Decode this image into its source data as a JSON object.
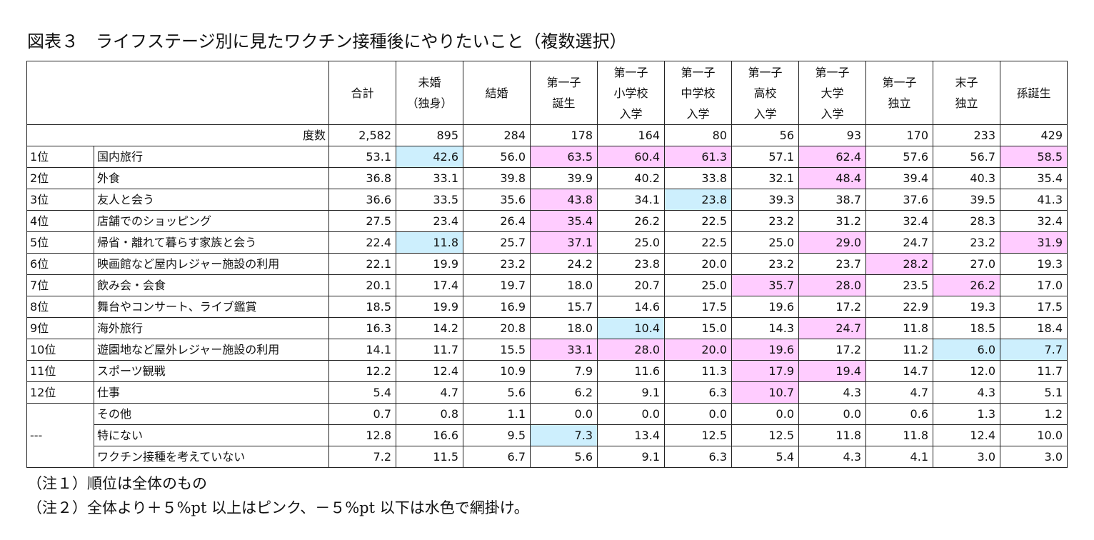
{
  "title": "図表３　ライフステージ別に見たワクチン接種後にやりたいこと（複数選択）",
  "columns": [
    [
      "合計"
    ],
    [
      "未婚",
      "（独身）"
    ],
    [
      "結婚"
    ],
    [
      "第一子",
      "誕生"
    ],
    [
      "第一子",
      "小学校",
      "入学"
    ],
    [
      "第一子",
      "中学校",
      "入学"
    ],
    [
      "第一子",
      "高校",
      "入学"
    ],
    [
      "第一子",
      "大学",
      "入学"
    ],
    [
      "第一子",
      "独立"
    ],
    [
      "末子",
      "独立"
    ],
    [
      "孫誕生"
    ]
  ],
  "dosu": {
    "label": "度数",
    "values": [
      "2,582",
      "895",
      "284",
      "178",
      "164",
      "80",
      "56",
      "93",
      "170",
      "233",
      "429"
    ]
  },
  "rows": [
    {
      "rank": "1位",
      "item": "国内旅行",
      "values": [
        "53.1",
        "42.6",
        "56.0",
        "63.5",
        "60.4",
        "61.3",
        "57.1",
        "62.4",
        "57.6",
        "56.7",
        "58.5"
      ],
      "hl": [
        "",
        "b",
        "",
        "p",
        "p",
        "p",
        "",
        "p",
        "",
        "",
        "p"
      ]
    },
    {
      "rank": "2位",
      "item": "外食",
      "values": [
        "36.8",
        "33.1",
        "39.8",
        "39.9",
        "40.2",
        "33.8",
        "32.1",
        "48.4",
        "39.4",
        "40.3",
        "35.4"
      ],
      "hl": [
        "",
        "",
        "",
        "",
        "",
        "",
        "",
        "p",
        "",
        "",
        ""
      ]
    },
    {
      "rank": "3位",
      "item": "友人と会う",
      "values": [
        "36.6",
        "33.5",
        "35.6",
        "43.8",
        "34.1",
        "23.8",
        "39.3",
        "38.7",
        "37.6",
        "39.5",
        "41.3"
      ],
      "hl": [
        "",
        "",
        "",
        "p",
        "",
        "b",
        "",
        "",
        "",
        "",
        ""
      ]
    },
    {
      "rank": "4位",
      "item": "店舗でのショッピング",
      "values": [
        "27.5",
        "23.4",
        "26.4",
        "35.4",
        "26.2",
        "22.5",
        "23.2",
        "31.2",
        "32.4",
        "28.3",
        "32.4"
      ],
      "hl": [
        "",
        "",
        "",
        "p",
        "",
        "",
        "",
        "",
        "",
        "",
        ""
      ]
    },
    {
      "rank": "5位",
      "item": "帰省・離れて暮らす家族と会う",
      "values": [
        "22.4",
        "11.8",
        "25.7",
        "37.1",
        "25.0",
        "22.5",
        "25.0",
        "29.0",
        "24.7",
        "23.2",
        "31.9"
      ],
      "hl": [
        "",
        "b",
        "",
        "p",
        "",
        "",
        "",
        "p",
        "",
        "",
        "p"
      ]
    },
    {
      "rank": "6位",
      "item": "映画館など屋内レジャー施設の利用",
      "values": [
        "22.1",
        "19.9",
        "23.2",
        "24.2",
        "23.8",
        "20.0",
        "23.2",
        "23.7",
        "28.2",
        "27.0",
        "19.3"
      ],
      "hl": [
        "",
        "",
        "",
        "",
        "",
        "",
        "",
        "",
        "p",
        "",
        ""
      ]
    },
    {
      "rank": "7位",
      "item": "飲み会・会食",
      "values": [
        "20.1",
        "17.4",
        "19.7",
        "18.0",
        "20.7",
        "25.0",
        "35.7",
        "28.0",
        "23.5",
        "26.2",
        "17.0"
      ],
      "hl": [
        "",
        "",
        "",
        "",
        "",
        "",
        "p",
        "p",
        "",
        "p",
        ""
      ]
    },
    {
      "rank": "8位",
      "item": "舞台やコンサート、ライブ鑑賞",
      "values": [
        "18.5",
        "19.9",
        "16.9",
        "15.7",
        "14.6",
        "17.5",
        "19.6",
        "17.2",
        "22.9",
        "19.3",
        "17.5"
      ],
      "hl": [
        "",
        "",
        "",
        "",
        "",
        "",
        "",
        "",
        "",
        "",
        ""
      ]
    },
    {
      "rank": "9位",
      "item": "海外旅行",
      "values": [
        "16.3",
        "14.2",
        "20.8",
        "18.0",
        "10.4",
        "15.0",
        "14.3",
        "24.7",
        "11.8",
        "18.5",
        "18.4"
      ],
      "hl": [
        "",
        "",
        "",
        "",
        "b",
        "",
        "",
        "p",
        "",
        "",
        ""
      ]
    },
    {
      "rank": "10位",
      "item": "遊園地など屋外レジャー施設の利用",
      "values": [
        "14.1",
        "11.7",
        "15.5",
        "33.1",
        "28.0",
        "20.0",
        "19.6",
        "17.2",
        "11.2",
        "6.0",
        "7.7"
      ],
      "hl": [
        "",
        "",
        "",
        "p",
        "p",
        "p",
        "p",
        "",
        "",
        "b",
        "b"
      ]
    },
    {
      "rank": "11位",
      "item": "スポーツ観戦",
      "values": [
        "12.2",
        "12.4",
        "10.9",
        "7.9",
        "11.6",
        "11.3",
        "17.9",
        "19.4",
        "14.7",
        "12.0",
        "11.7"
      ],
      "hl": [
        "",
        "",
        "",
        "",
        "",
        "",
        "p",
        "p",
        "",
        "",
        ""
      ]
    },
    {
      "rank": "12位",
      "item": "仕事",
      "values": [
        "5.4",
        "4.7",
        "5.6",
        "6.2",
        "9.1",
        "6.3",
        "10.7",
        "4.3",
        "4.7",
        "4.3",
        "5.1"
      ],
      "hl": [
        "",
        "",
        "",
        "",
        "",
        "",
        "p",
        "",
        "",
        "",
        ""
      ]
    }
  ],
  "other_rank": "---",
  "other_rows": [
    {
      "item": "その他",
      "values": [
        "0.7",
        "0.8",
        "1.1",
        "0.0",
        "0.0",
        "0.0",
        "0.0",
        "0.0",
        "0.6",
        "1.3",
        "1.2"
      ],
      "hl": [
        "",
        "",
        "",
        "",
        "",
        "",
        "",
        "",
        "",
        "",
        ""
      ]
    },
    {
      "item": "特にない",
      "values": [
        "12.8",
        "16.6",
        "9.5",
        "7.3",
        "13.4",
        "12.5",
        "12.5",
        "11.8",
        "11.8",
        "12.4",
        "10.0"
      ],
      "hl": [
        "",
        "",
        "",
        "b",
        "",
        "",
        "",
        "",
        "",
        "",
        ""
      ]
    },
    {
      "item": "ワクチン接種を考えていない",
      "values": [
        "7.2",
        "11.5",
        "6.7",
        "5.6",
        "9.1",
        "6.3",
        "5.4",
        "4.3",
        "4.1",
        "3.0",
        "3.0"
      ],
      "hl": [
        "",
        "",
        "",
        "",
        "",
        "",
        "",
        "",
        "",
        "",
        ""
      ]
    }
  ],
  "highlight_colors": {
    "pink": "#ffccff",
    "blue": "#cdeffd"
  },
  "notes": [
    "（注１）順位は全体のもの",
    "（注２）全体より＋５%pt 以上はピンク、－５%pt 以下は水色で網掛け。"
  ]
}
